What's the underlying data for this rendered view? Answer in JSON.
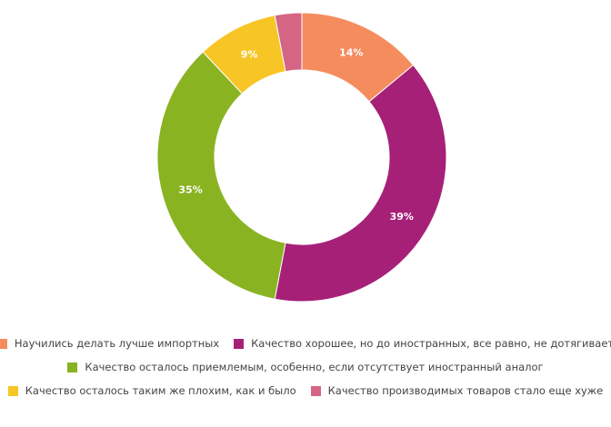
{
  "chart_data": {
    "type": "pie",
    "donut": true,
    "title": "",
    "legend_position": "bottom",
    "slices": [
      {
        "label": "Научились делать лучше импортных",
        "value": 14,
        "display": "14%",
        "color": "#f58c5e"
      },
      {
        "label": "Качество хорошее, но до иностранных, все равно, не дотягивает",
        "value": 39,
        "display": "39%",
        "color": "#a72078"
      },
      {
        "label": "Качество осталось приемлемым, особенно, если отсутствует иностранный аналог",
        "value": 35,
        "display": "35%",
        "color": "#8ab322"
      },
      {
        "label": "Качество осталось таким же плохим, как и было",
        "value": 9,
        "display": "9%",
        "color": "#f7c526"
      },
      {
        "label": "Качество производимых товаров стало еще хуже",
        "value": 3,
        "display": "",
        "color": "#d46585"
      }
    ]
  }
}
